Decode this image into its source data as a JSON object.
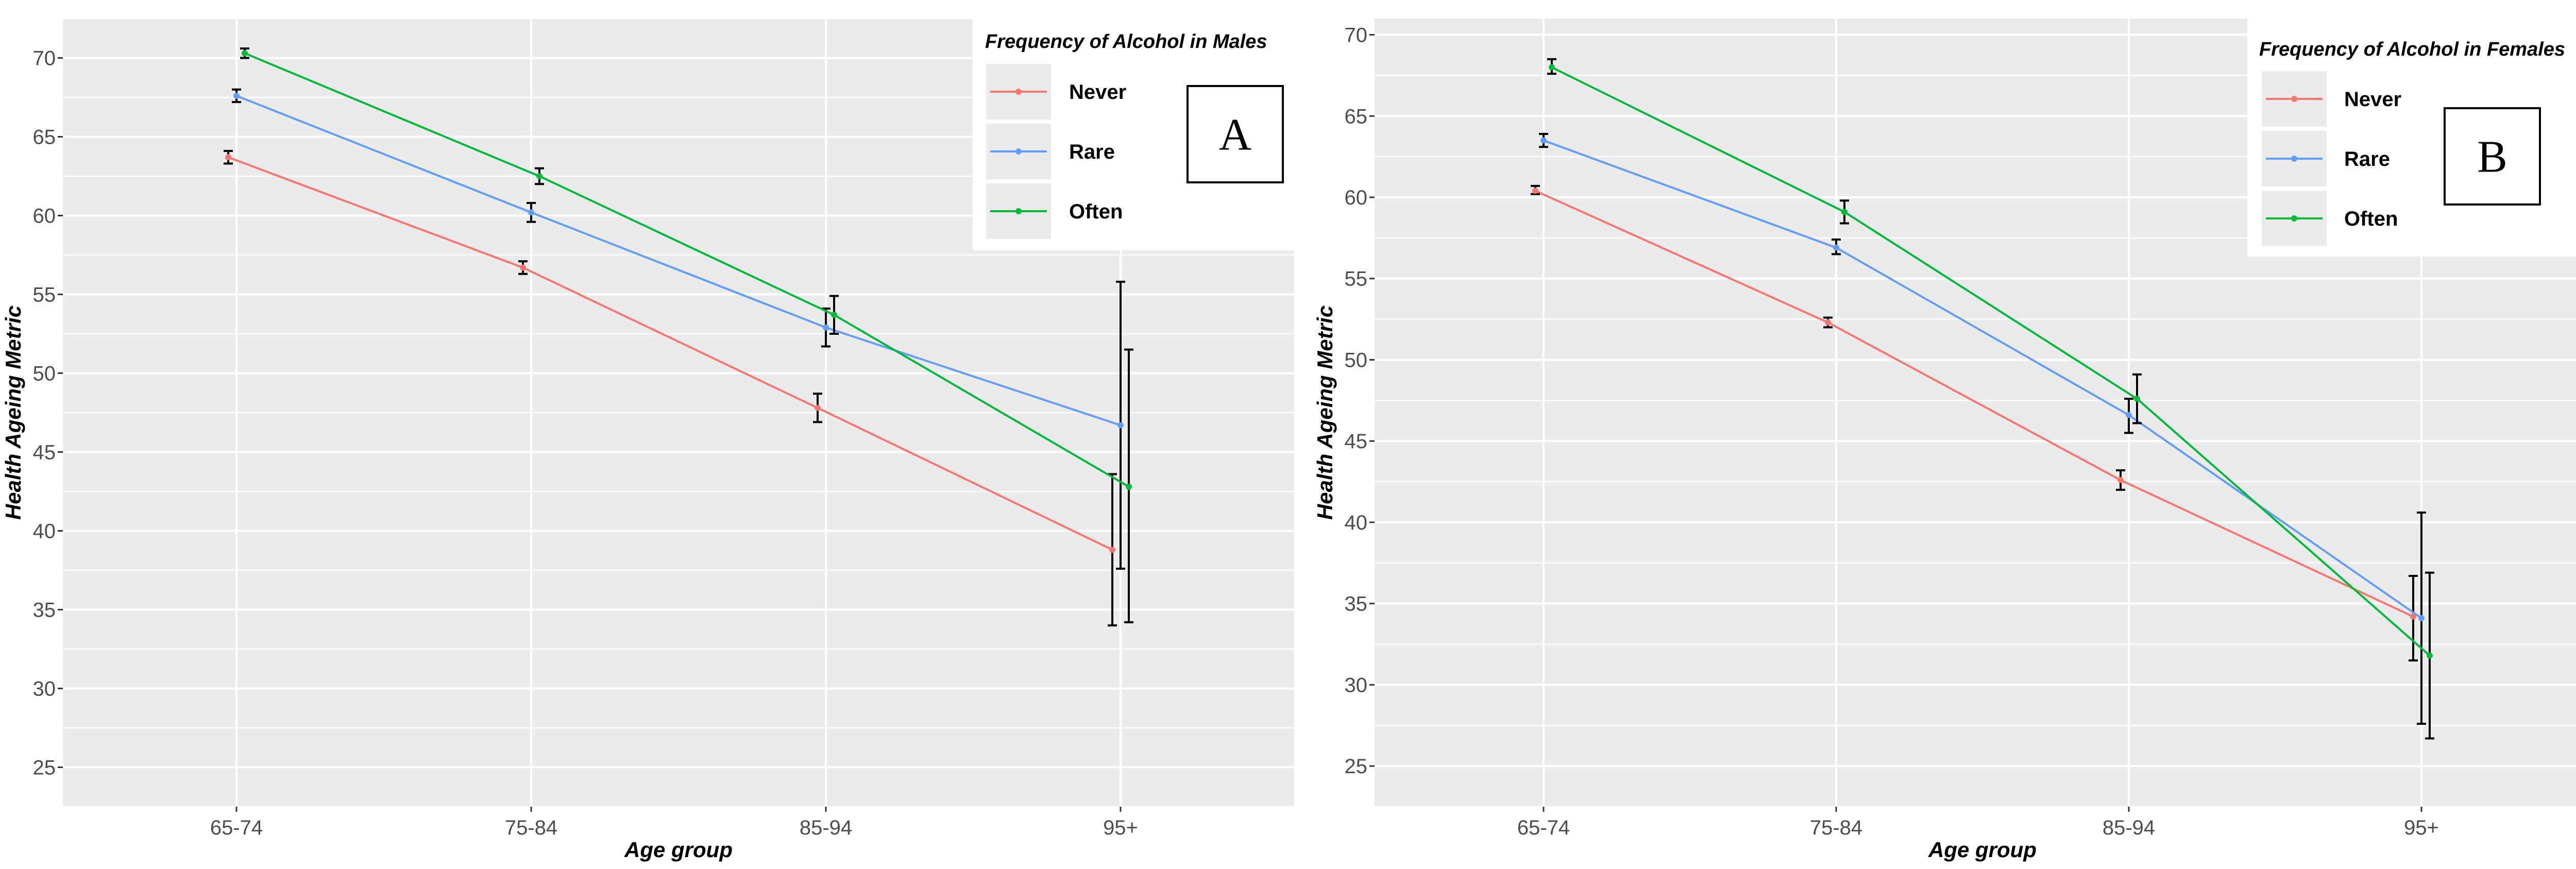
{
  "chart_data": [
    {
      "type": "line",
      "panel_label": "A",
      "title": "",
      "xlabel": "Age group",
      "ylabel": "Health Ageing Metric",
      "categories": [
        "65-74",
        "75-84",
        "85-94",
        "95+"
      ],
      "ylim": [
        22.5,
        72.5
      ],
      "yticks": [
        25,
        30,
        35,
        40,
        45,
        50,
        55,
        60,
        65,
        70
      ],
      "grid": true,
      "legend_title": "Frequency of Alcohol in Males",
      "legend_position": "top-right",
      "series": [
        {
          "name": "Never",
          "color": "#F8766D",
          "values": [
            63.7,
            56.7,
            47.8,
            38.8
          ],
          "lower": [
            63.3,
            56.3,
            46.9,
            34.0
          ],
          "upper": [
            64.1,
            57.1,
            48.7,
            43.6
          ]
        },
        {
          "name": "Rare",
          "color": "#619CFF",
          "values": [
            67.6,
            60.2,
            52.9,
            46.7
          ],
          "lower": [
            67.2,
            59.6,
            51.7,
            37.6
          ],
          "upper": [
            68.0,
            60.8,
            54.1,
            55.8
          ]
        },
        {
          "name": "Often",
          "color": "#00BA38",
          "values": [
            70.3,
            62.5,
            53.7,
            42.8
          ],
          "lower": [
            70.0,
            62.0,
            52.5,
            34.2
          ],
          "upper": [
            70.6,
            63.0,
            54.9,
            51.5
          ]
        }
      ]
    },
    {
      "type": "line",
      "panel_label": "B",
      "title": "",
      "xlabel": "Age group",
      "ylabel": "Health Ageing Metric",
      "categories": [
        "65-74",
        "75-84",
        "85-94",
        "95+"
      ],
      "ylim": [
        22.5,
        71.0
      ],
      "yticks": [
        25,
        30,
        35,
        40,
        45,
        50,
        55,
        60,
        65,
        70
      ],
      "grid": true,
      "legend_title": "Frequency of Alcohol in Females",
      "legend_position": "top-right",
      "series": [
        {
          "name": "Never",
          "color": "#F8766D",
          "values": [
            60.4,
            52.3,
            42.6,
            34.2
          ],
          "lower": [
            60.2,
            52.0,
            42.0,
            31.5
          ],
          "upper": [
            60.7,
            52.6,
            43.2,
            36.7
          ]
        },
        {
          "name": "Rare",
          "color": "#619CFF",
          "values": [
            63.5,
            56.9,
            46.6,
            34.1
          ],
          "lower": [
            63.1,
            56.5,
            45.5,
            27.6
          ],
          "upper": [
            63.9,
            57.4,
            47.6,
            40.6
          ]
        },
        {
          "name": "Often",
          "color": "#00BA38",
          "values": [
            68.0,
            59.1,
            47.6,
            31.8
          ],
          "lower": [
            67.6,
            58.4,
            46.1,
            26.7
          ],
          "upper": [
            68.5,
            59.8,
            49.1,
            36.9
          ]
        }
      ]
    }
  ]
}
